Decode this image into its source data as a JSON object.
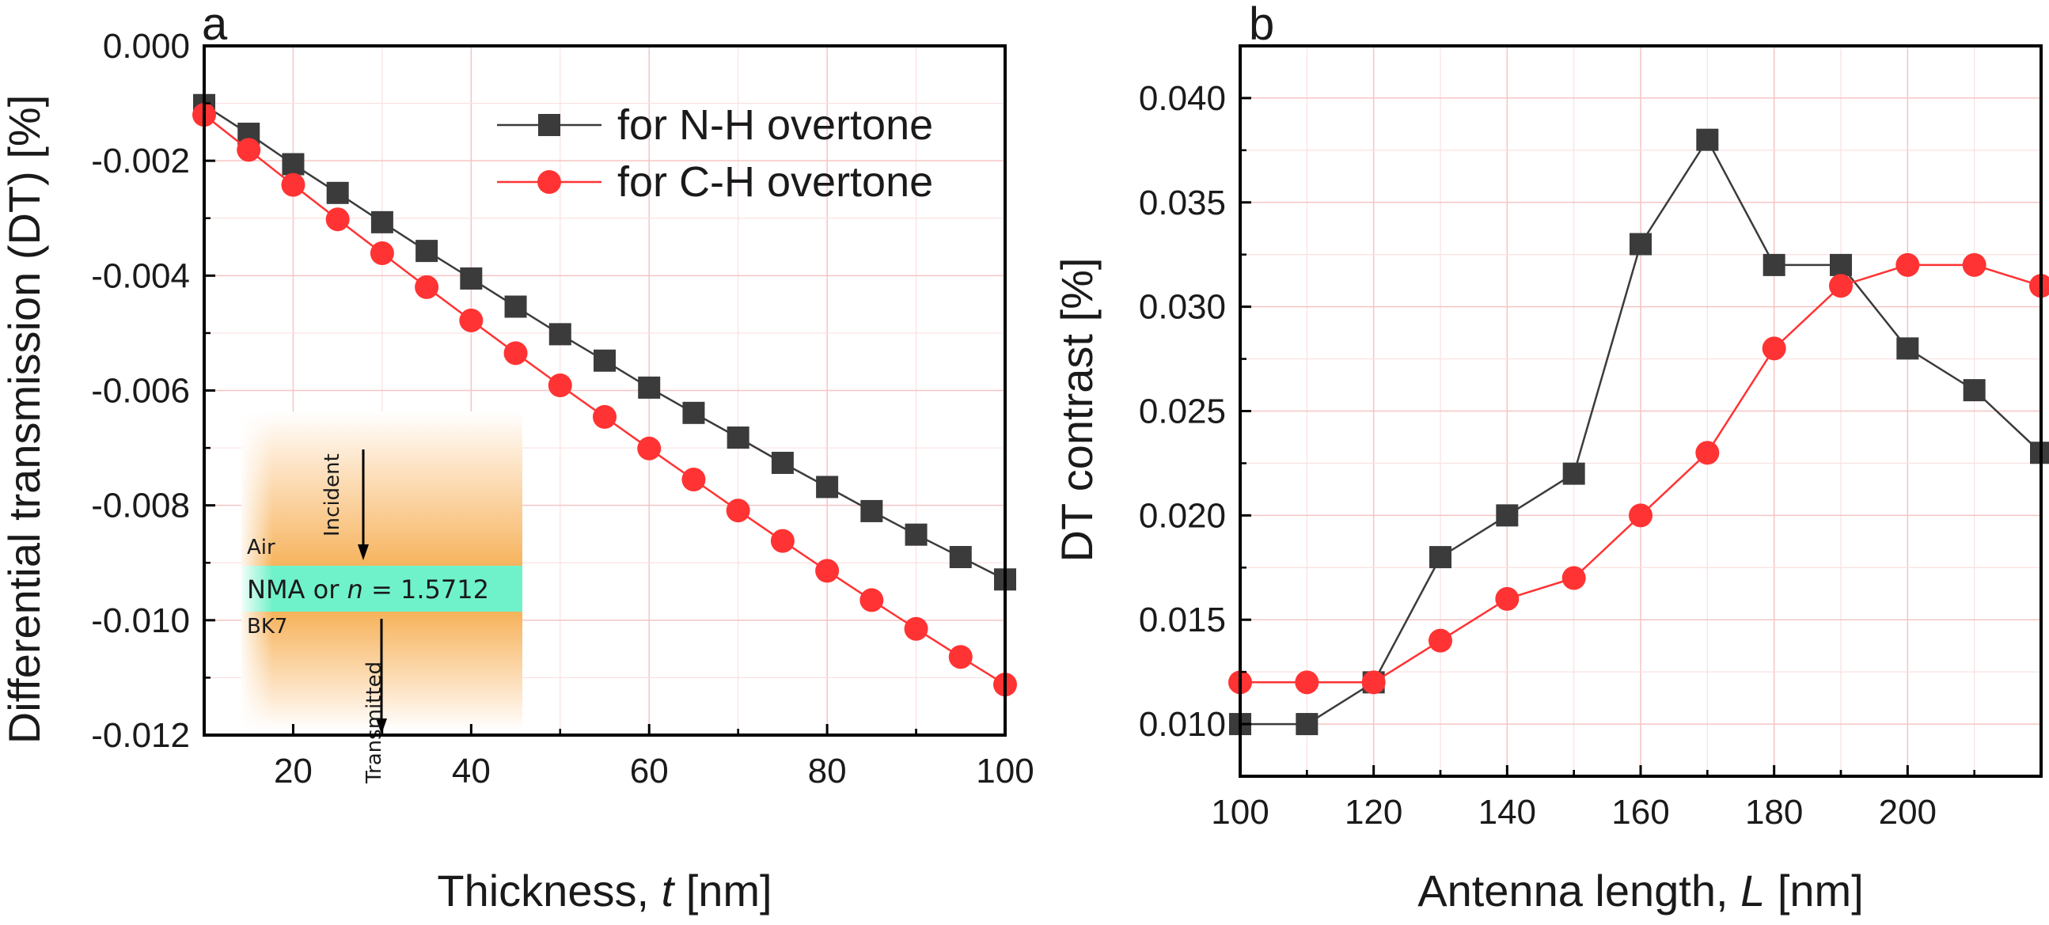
{
  "panels": {
    "a": "a",
    "b": "b"
  },
  "chart_data": [
    {
      "type": "line",
      "xlabel_text": "Thickness, ",
      "xlabel_var": "t",
      "xlabel_unit": " [nm]",
      "ylabel": "Differential transmission (DT)  [%]",
      "xlim": [
        10,
        100
      ],
      "ylim": [
        -0.012,
        0.0
      ],
      "xticks": [
        "20",
        "40",
        "60",
        "80",
        "100"
      ],
      "yticks": [
        "0.000",
        "-0.002",
        "-0.004",
        "-0.006",
        "-0.008",
        "-0.010",
        "-0.012"
      ],
      "legend": [
        "for N-H overtone",
        "for C-H overtone"
      ],
      "series": [
        {
          "name": "for N-H overtone",
          "color": "#3b3b3b",
          "marker": "square",
          "x": [
            10,
            15,
            20,
            25,
            30,
            35,
            40,
            45,
            50,
            55,
            60,
            65,
            70,
            75,
            80,
            85,
            90,
            95,
            100
          ],
          "values": [
            -0.00103,
            -0.00153,
            -0.00206,
            -0.00256,
            -0.00307,
            -0.00357,
            -0.00405,
            -0.00454,
            -0.00502,
            -0.00548,
            -0.00595,
            -0.00639,
            -0.00682,
            -0.00726,
            -0.00768,
            -0.0081,
            -0.00851,
            -0.0089,
            -0.00929
          ]
        },
        {
          "name": "for C-H overtone",
          "color": "#ff3333",
          "marker": "circle",
          "x": [
            10,
            15,
            20,
            25,
            30,
            35,
            40,
            45,
            50,
            55,
            60,
            65,
            70,
            75,
            80,
            85,
            90,
            95,
            100
          ],
          "values": [
            -0.0012,
            -0.00181,
            -0.00242,
            -0.00302,
            -0.00361,
            -0.0042,
            -0.00478,
            -0.00535,
            -0.00591,
            -0.00646,
            -0.00701,
            -0.00755,
            -0.00809,
            -0.00862,
            -0.00914,
            -0.00965,
            -0.01015,
            -0.01064,
            -0.01112
          ]
        }
      ]
    },
    {
      "type": "line",
      "xlabel_text": "Antenna length, ",
      "xlabel_var": "L",
      "xlabel_unit": " [nm]",
      "ylabel": "DT  contrast [%]",
      "xlim": [
        100,
        220
      ],
      "ylim": [
        0.0075,
        0.0425
      ],
      "xticks": [
        "100",
        "120",
        "140",
        "160",
        "180",
        "200"
      ],
      "yticks": [
        "0.040",
        "0.035",
        "0.030",
        "0.025",
        "0.020",
        "0.015",
        "0.010"
      ],
      "series": [
        {
          "name": "N-H",
          "color": "#3b3b3b",
          "marker": "square",
          "x": [
            100,
            110,
            120,
            130,
            140,
            150,
            160,
            170,
            180,
            190,
            200,
            210,
            220
          ],
          "values": [
            0.01,
            0.01,
            0.012,
            0.018,
            0.02,
            0.022,
            0.033,
            0.038,
            0.032,
            0.032,
            0.028,
            0.026,
            0.023
          ]
        },
        {
          "name": "C-H",
          "color": "#ff3333",
          "marker": "circle",
          "x": [
            100,
            110,
            120,
            130,
            140,
            150,
            160,
            170,
            180,
            190,
            200,
            210,
            220
          ],
          "values": [
            0.012,
            0.012,
            0.012,
            0.014,
            0.016,
            0.017,
            0.02,
            0.023,
            0.028,
            0.031,
            0.032,
            0.032,
            0.031
          ]
        }
      ]
    }
  ],
  "inset": {
    "incident": "Incident",
    "air": "Air",
    "layer_prefix": "NMA or ",
    "layer_var": "n",
    "layer_value": " = 1.5712",
    "substrate": "BK7",
    "transmitted": "Transmitted"
  }
}
